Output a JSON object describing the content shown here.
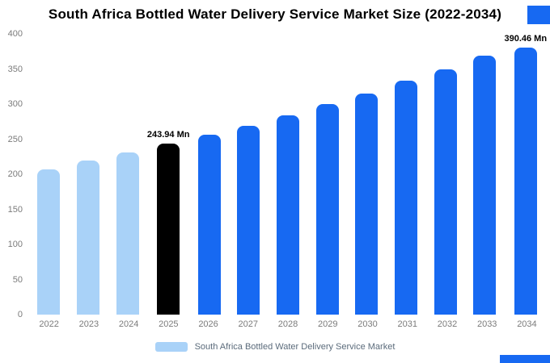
{
  "chart_data": {
    "type": "bar",
    "title": "South Africa Bottled Water Delivery Service Market Size (2022-2034)",
    "categories": [
      "2022",
      "2023",
      "2024",
      "2025",
      "2026",
      "2027",
      "2028",
      "2029",
      "2030",
      "2031",
      "2032",
      "2033",
      "2034"
    ],
    "values": [
      207,
      219,
      231,
      243.94,
      256,
      269,
      284,
      300,
      315,
      333,
      350,
      369,
      390.46
    ],
    "ylim": [
      0,
      400
    ],
    "yticks": [
      0,
      50,
      100,
      150,
      200,
      250,
      300,
      350,
      400
    ],
    "grid": false,
    "legend_position": "bottom",
    "legend_label": "South Africa Bottled Water Delivery Service Market",
    "bar_color_roles": [
      "past",
      "past",
      "past",
      "current",
      "forecast",
      "forecast",
      "forecast",
      "forecast",
      "forecast",
      "forecast",
      "forecast",
      "forecast",
      "forecast"
    ],
    "colors": {
      "past": "#a9d2f8",
      "current": "#000000",
      "forecast": "#1769f2"
    },
    "annotations": [
      {
        "index": 3,
        "text": "243.94 Mn"
      },
      {
        "index": 12,
        "text": "390.46 Mn"
      }
    ]
  },
  "decorations": {
    "accent_color": "#1769f2"
  }
}
